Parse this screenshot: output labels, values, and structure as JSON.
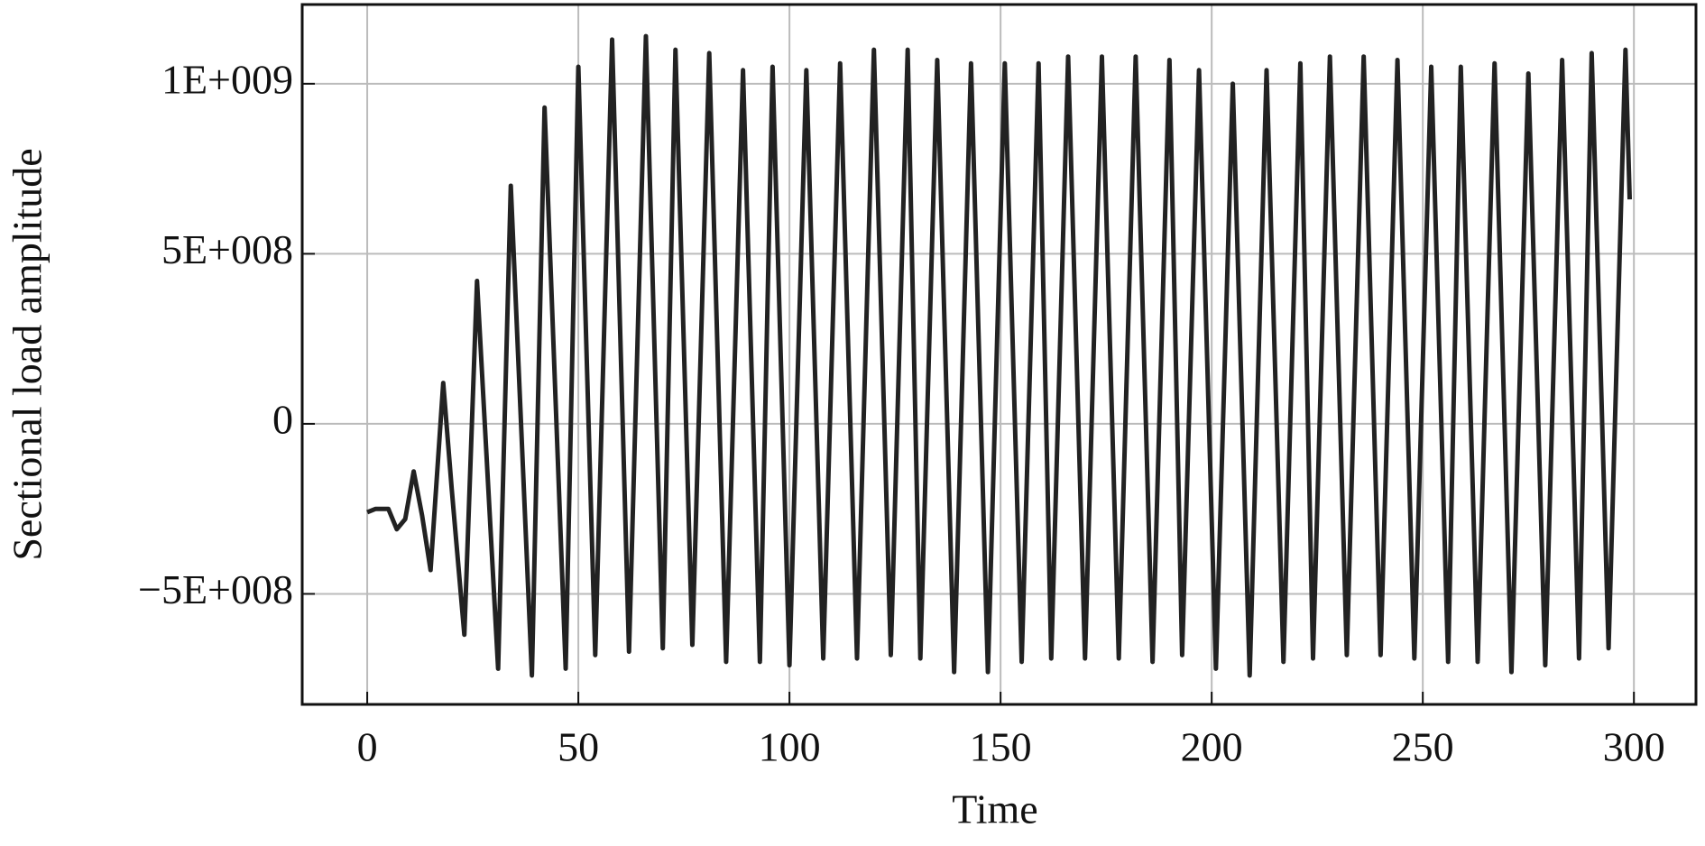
{
  "chart_data": {
    "type": "line",
    "xlabel": "Time",
    "ylabel": "Sectional load amplitude",
    "x": [
      0,
      2,
      5,
      7,
      9,
      11,
      13,
      15,
      18,
      20,
      23,
      26,
      31,
      34,
      39,
      42,
      47,
      50,
      54,
      58,
      62,
      66,
      70,
      73,
      77,
      81,
      85,
      89,
      93,
      96,
      100,
      104,
      108,
      112,
      116,
      120,
      124,
      128,
      131,
      135,
      139,
      143,
      147,
      151,
      155,
      159,
      162,
      166,
      170,
      174,
      178,
      182,
      186,
      190,
      193,
      197,
      201,
      205,
      209,
      213,
      217,
      221,
      224,
      228,
      232,
      236,
      240,
      244,
      248,
      252,
      256,
      259,
      263,
      267,
      271,
      275,
      279,
      283,
      287,
      290,
      294,
      298,
      299
    ],
    "series": [
      {
        "name": "Sectional load amplitude",
        "color": "#222222",
        "values": [
          -260000000,
          -250000000,
          -250000000,
          -310000000,
          -280000000,
          -140000000,
          -270000000,
          -430000000,
          120000000,
          -190000000,
          -620000000,
          420000000,
          -720000000,
          700000000,
          -740000000,
          930000000,
          -720000000,
          1050000000,
          -680000000,
          1130000000,
          -670000000,
          1140000000,
          -660000000,
          1100000000,
          -650000000,
          1090000000,
          -700000000,
          1040000000,
          -700000000,
          1050000000,
          -710000000,
          1040000000,
          -690000000,
          1060000000,
          -690000000,
          1100000000,
          -680000000,
          1100000000,
          -690000000,
          1070000000,
          -730000000,
          1060000000,
          -730000000,
          1060000000,
          -700000000,
          1060000000,
          -690000000,
          1080000000,
          -690000000,
          1080000000,
          -690000000,
          1080000000,
          -700000000,
          1070000000,
          -680000000,
          1040000000,
          -720000000,
          1000000000,
          -740000000,
          1040000000,
          -700000000,
          1060000000,
          -690000000,
          1080000000,
          -680000000,
          1080000000,
          -680000000,
          1070000000,
          -690000000,
          1050000000,
          -700000000,
          1050000000,
          -700000000,
          1060000000,
          -730000000,
          1030000000,
          -710000000,
          1070000000,
          -690000000,
          1090000000,
          -660000000,
          1100000000,
          660000000
        ]
      }
    ],
    "xlim": [
      -15.4,
      314.7
    ],
    "ylim": [
      -825000000,
      1233000000
    ],
    "xticks": [
      0,
      50,
      100,
      150,
      200,
      250,
      300
    ],
    "yticks": [
      {
        "value": -500000000,
        "label": "−5E+008"
      },
      0,
      {
        "value": 500000000,
        "label": "5E+008"
      },
      {
        "value": 1000000000,
        "label": "1E+009"
      }
    ],
    "grid": true
  }
}
